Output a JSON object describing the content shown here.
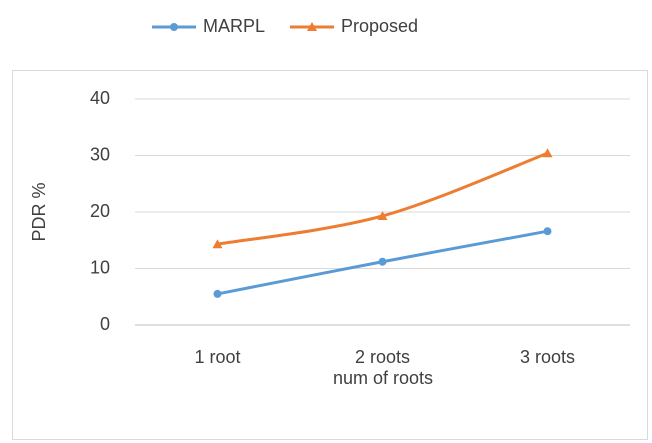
{
  "chart_data": {
    "type": "line",
    "xlabel": "num of roots",
    "ylabel": "PDR %",
    "categories": [
      "1 root",
      "2 roots",
      "3 roots"
    ],
    "series": [
      {
        "name": "MARPL",
        "color": "#5b9bd5",
        "marker": "circle",
        "values": [
          5.5,
          11.2,
          16.6
        ]
      },
      {
        "name": "Proposed",
        "color": "#ed7d31",
        "marker": "triangle",
        "values": [
          14.3,
          19.3,
          30.4
        ]
      }
    ],
    "ylim": [
      0,
      40
    ],
    "yticks": [
      0,
      10,
      20,
      30,
      40
    ],
    "grid": true,
    "legend": "top",
    "smooth": true
  }
}
